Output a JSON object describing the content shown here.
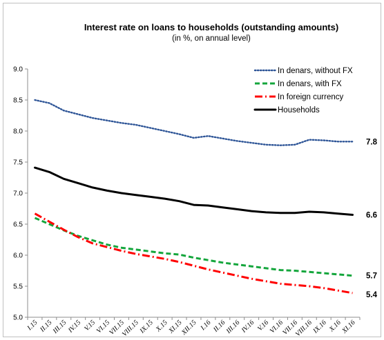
{
  "chart_data": {
    "type": "line",
    "title": "Interest rate on loans to households (outstanding amounts)",
    "subtitle": "(in %, on annual level)",
    "xlabel": "",
    "ylabel": "",
    "ylim": [
      5.0,
      9.0
    ],
    "yticks": [
      "5.0",
      "5.5",
      "6.0",
      "6.5",
      "7.0",
      "7.5",
      "8.0",
      "8.5",
      "9.0"
    ],
    "grid": false,
    "legend": "top-right",
    "categories": [
      "I.15",
      "II.15",
      "III.15",
      "IV.15",
      "V.15",
      "VI.15",
      "VII.15",
      "VIII.15",
      "IX.15",
      "X.15",
      "XI.15",
      "XII.15",
      "I.16",
      "II.16",
      "III.16",
      "IV.16",
      "V.16",
      "VI.16",
      "VII.16",
      "VIII.16",
      "IX.16",
      "X.16",
      "XI.16"
    ],
    "series": [
      {
        "name": "In denars, without FX",
        "color": "#2e5597",
        "style": "dotted",
        "end_label": "7.8",
        "values": [
          8.5,
          8.45,
          8.33,
          8.27,
          8.21,
          8.17,
          8.13,
          8.1,
          8.05,
          8.0,
          7.95,
          7.89,
          7.92,
          7.88,
          7.84,
          7.81,
          7.78,
          7.77,
          7.78,
          7.86,
          7.85,
          7.83,
          7.83
        ]
      },
      {
        "name": "In denars, with FX",
        "color": "#14a63c",
        "style": "dashed",
        "end_label": "5.7",
        "values": [
          6.6,
          6.5,
          6.4,
          6.31,
          6.24,
          6.17,
          6.12,
          6.09,
          6.06,
          6.03,
          6.01,
          5.96,
          5.92,
          5.88,
          5.85,
          5.82,
          5.79,
          5.76,
          5.75,
          5.73,
          5.71,
          5.69,
          5.67
        ]
      },
      {
        "name": "In foreign currency",
        "color": "#ff0000",
        "style": "dashdot",
        "end_label": "5.4",
        "values": [
          6.67,
          6.54,
          6.41,
          6.29,
          6.19,
          6.13,
          6.07,
          6.02,
          5.98,
          5.94,
          5.89,
          5.83,
          5.77,
          5.72,
          5.67,
          5.62,
          5.58,
          5.54,
          5.52,
          5.5,
          5.47,
          5.43,
          5.39
        ]
      },
      {
        "name": "Households",
        "color": "#000000",
        "style": "solid",
        "end_label": "6.6",
        "values": [
          7.41,
          7.34,
          7.23,
          7.16,
          7.09,
          7.04,
          7.0,
          6.97,
          6.94,
          6.91,
          6.87,
          6.81,
          6.8,
          6.77,
          6.74,
          6.71,
          6.69,
          6.68,
          6.68,
          6.7,
          6.69,
          6.67,
          6.65
        ]
      }
    ]
  }
}
